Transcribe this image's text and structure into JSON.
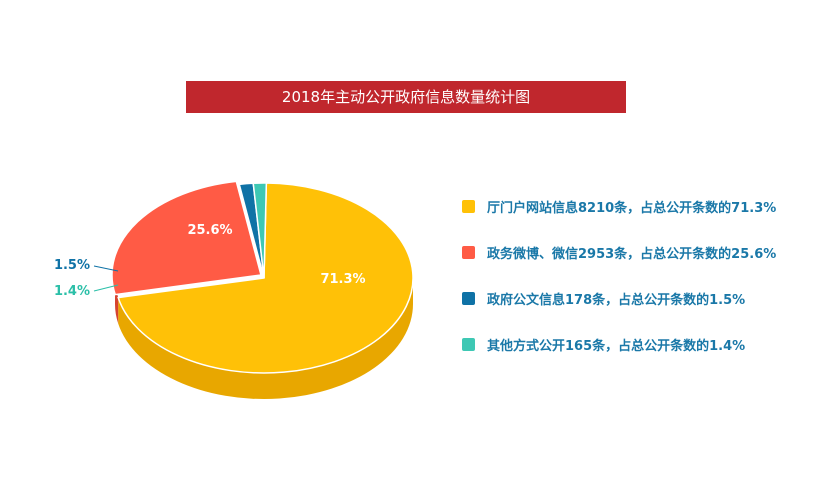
{
  "chart_data": {
    "type": "pie",
    "title": "2018年主动公开政府信息数量统计图",
    "slices": [
      {
        "name": "厅门户网站信息",
        "count": 8210,
        "percent": 71.3,
        "label": "71.3%",
        "legend": "厅门户网站信息8210条，占总公开条数的71.3%",
        "color": "#ffc107",
        "side_color": "#e8a700",
        "label_color": "#ffffff"
      },
      {
        "name": "政务微博、微信",
        "count": 2953,
        "percent": 25.6,
        "label": "25.6%",
        "legend": "政务微博、微信2953条，占总公开条数的25.6%",
        "color": "#ff5b45",
        "side_color": "#d64430",
        "label_color": "#ffffff"
      },
      {
        "name": "政府公文信息",
        "count": 178,
        "percent": 1.5,
        "label": "1.5%",
        "legend": "政府公文信息178条，占总公开条数的1.5%",
        "color": "#0f72a6",
        "side_color": "#0a5680",
        "label_color": "#0f72a6"
      },
      {
        "name": "其他方式公开",
        "count": 165,
        "percent": 1.4,
        "label": "1.4%",
        "legend": "其他方式公开165条，占总公开条数的1.4%",
        "color": "#3ec8b4",
        "side_color": "#2aa795",
        "label_color": "#2bbfa8"
      }
    ]
  }
}
